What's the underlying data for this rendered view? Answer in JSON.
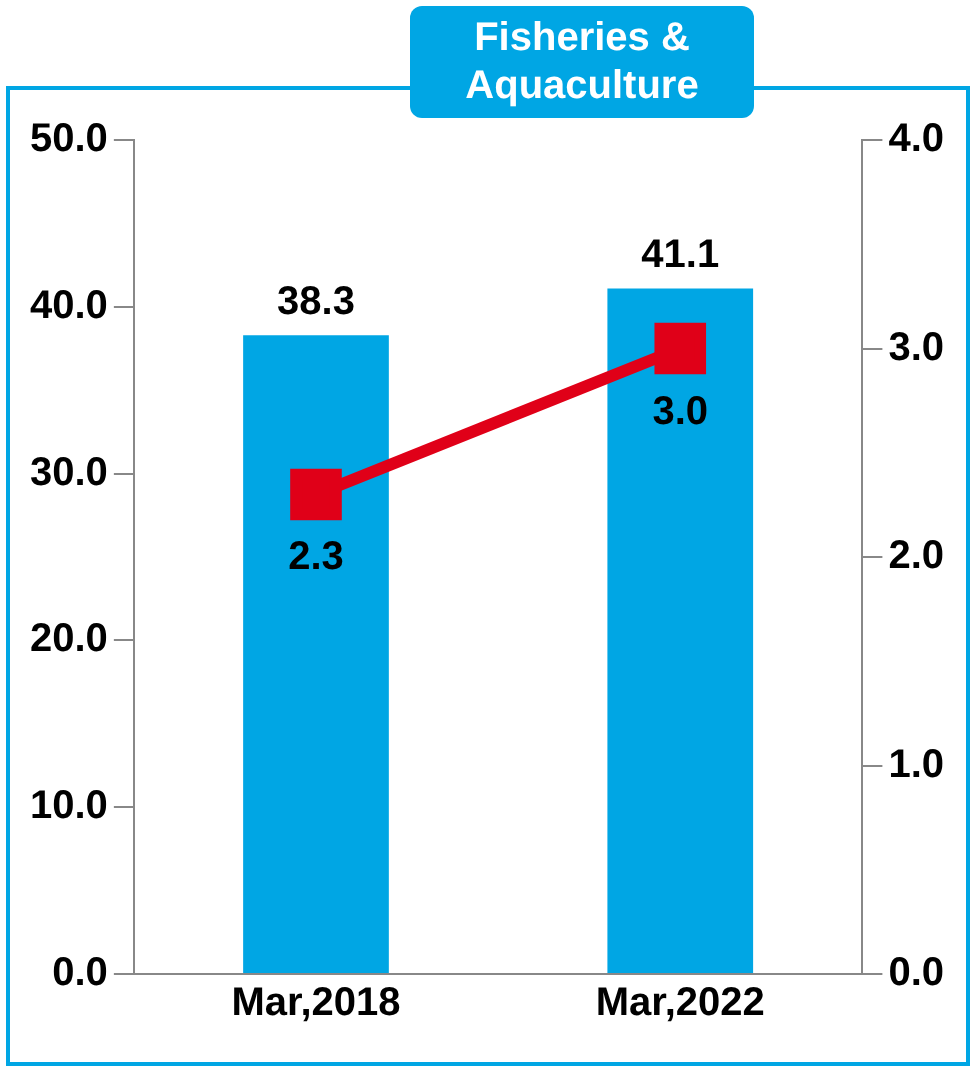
{
  "chart_data": {
    "type": "bar",
    "title": "Fisheries & Aquaculture",
    "categories": [
      "Mar,2018",
      "Mar,2022"
    ],
    "series": [
      {
        "color": "#00a6e4",
        "values": [
          38.3,
          41.1
        ],
        "value_labels": [
          "38.3",
          "41.1"
        ]
      },
      {
        "type": "line",
        "axis": "y2",
        "color": "#e00018",
        "values": [
          2.3,
          3.0
        ],
        "value_labels": [
          "2.3",
          "3.0"
        ],
        "marker": "square"
      }
    ],
    "ylim": [
      0,
      50
    ],
    "yticks": [
      {
        "value": 0,
        "label": "0.0"
      },
      {
        "value": 10,
        "label": "10.0"
      },
      {
        "value": 20,
        "label": "20.0"
      },
      {
        "value": 30,
        "label": "30.0"
      },
      {
        "value": 40,
        "label": "40.0"
      },
      {
        "value": 50,
        "label": "50.0"
      }
    ],
    "y2lim": [
      0,
      4
    ],
    "y2ticks": [
      {
        "value": 0,
        "label": "0.0"
      },
      {
        "value": 1,
        "label": "1.0"
      },
      {
        "value": 2,
        "label": "2.0"
      },
      {
        "value": 3,
        "label": "3.0"
      },
      {
        "value": 4,
        "label": "4.0"
      }
    ],
    "grid": false,
    "legend": false
  }
}
